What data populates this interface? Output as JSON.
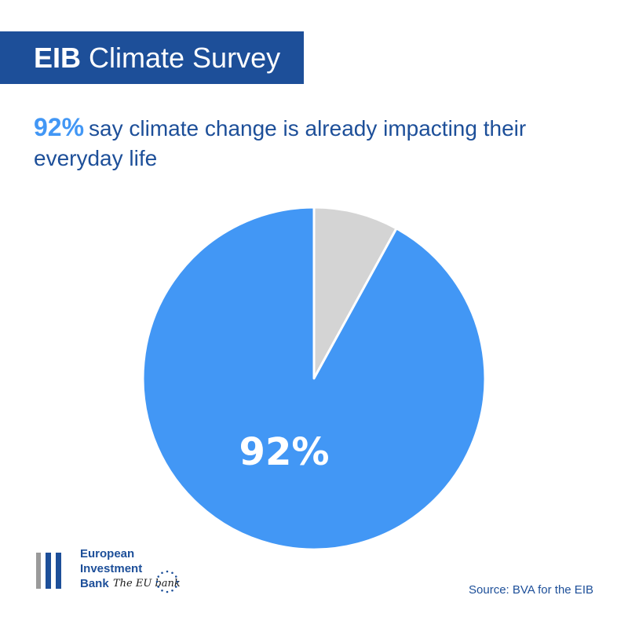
{
  "header": {
    "title_bold": "EIB",
    "title_rest": "Climate Survey"
  },
  "headline": {
    "highlight": "92%",
    "text": "say climate change is already impacting their everyday life"
  },
  "chart_data": {
    "type": "pie",
    "slices": [
      {
        "label": "92%",
        "value": 92,
        "color": "#4297f5"
      },
      {
        "label": "",
        "value": 8,
        "color": "#d4d4d4"
      }
    ]
  },
  "logo": {
    "lines": [
      "European",
      "Investment",
      "Bank"
    ],
    "tagline": "The EU bank"
  },
  "source": "Source: BVA for the EIB",
  "colors": {
    "brand_blue": "#1d4f99",
    "accent_blue": "#4297f5",
    "grey": "#d4d4d4"
  }
}
